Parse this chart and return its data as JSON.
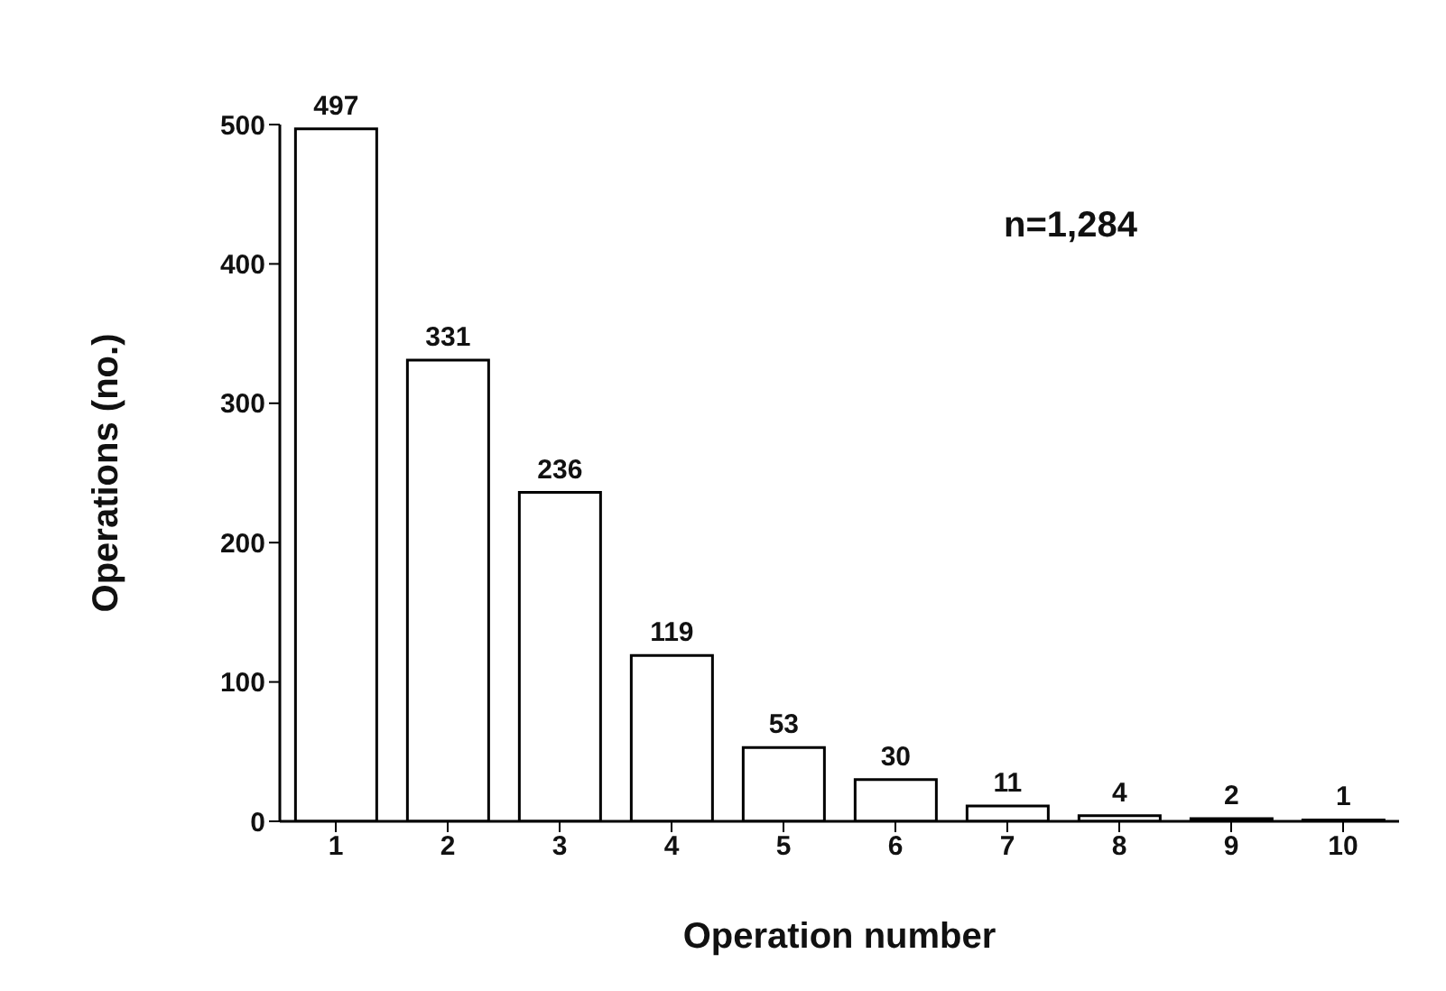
{
  "chart_data": {
    "type": "bar",
    "categories": [
      "1",
      "2",
      "3",
      "4",
      "5",
      "6",
      "7",
      "8",
      "9",
      "10"
    ],
    "values": [
      497,
      331,
      236,
      119,
      53,
      30,
      11,
      4,
      2,
      1
    ],
    "color": "#ffffff",
    "xlabel": "Operation number",
    "ylabel": "Operations (no.)",
    "ylim": [
      0,
      500
    ],
    "yticks": [
      0,
      100,
      200,
      300,
      400,
      500
    ],
    "data_labels": true,
    "grid": false,
    "annotations": [
      "n=1,284"
    ]
  }
}
